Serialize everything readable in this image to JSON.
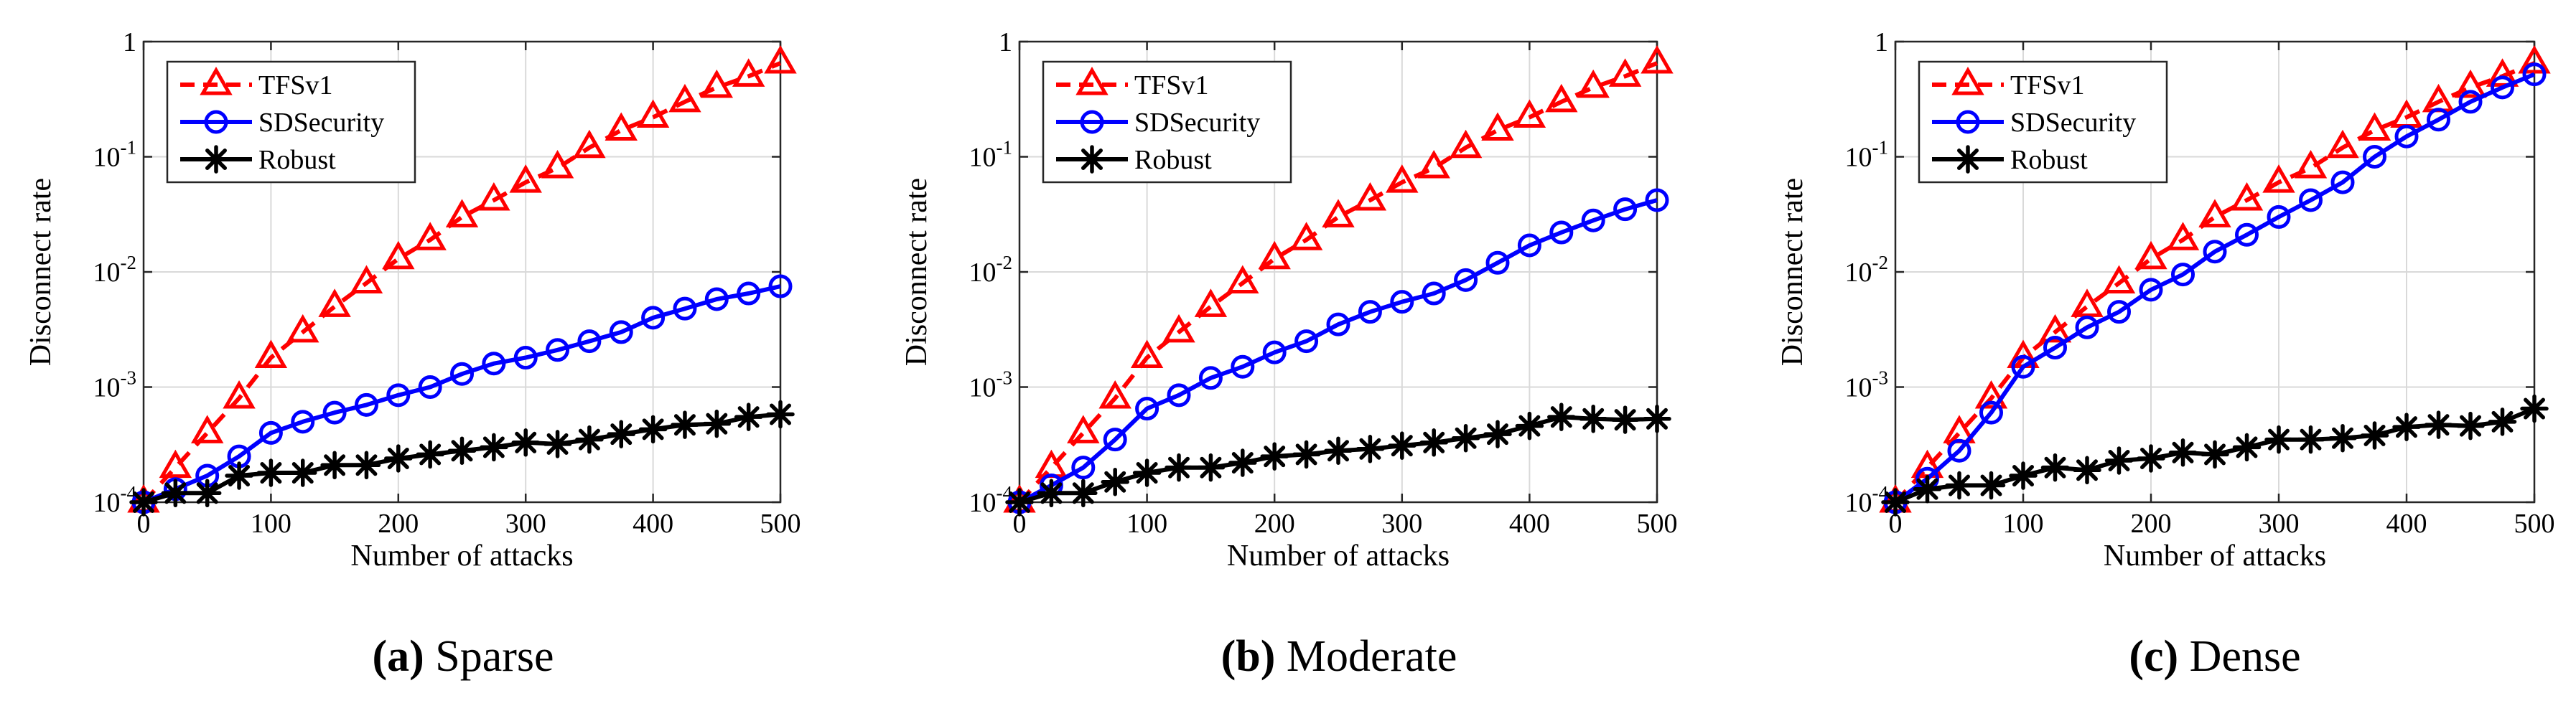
{
  "figure": {
    "panels": [
      {
        "letter": "(a)",
        "name": "Sparse"
      },
      {
        "letter": "(b)",
        "name": "Moderate"
      },
      {
        "letter": "(c)",
        "name": "Dense"
      }
    ]
  },
  "chart_data": [
    {
      "type": "line",
      "subtitle": "(a) Sparse",
      "xlabel": "Number of attacks",
      "ylabel": "Disconnect rate",
      "yscale": "log",
      "xlim": [
        0,
        500
      ],
      "ylim": [
        0.0001,
        1
      ],
      "xticks": [
        0,
        100,
        200,
        300,
        400,
        500
      ],
      "yticks": [
        {
          "value": 0.0001,
          "base": "10",
          "exp": "-4"
        },
        {
          "value": 0.001,
          "base": "10",
          "exp": "-3"
        },
        {
          "value": 0.01,
          "base": "10",
          "exp": "-2"
        },
        {
          "value": 0.1,
          "base": "10",
          "exp": "-1"
        },
        {
          "value": 1,
          "base": "1",
          "exp": ""
        }
      ],
      "grid": true,
      "legend_position": "top-left",
      "x": [
        0,
        25,
        50,
        75,
        100,
        125,
        150,
        175,
        200,
        225,
        250,
        275,
        300,
        325,
        350,
        375,
        400,
        425,
        450,
        475,
        500
      ],
      "series": [
        {
          "name": "TFSv1",
          "color": "#ff0000",
          "marker": "triangle",
          "line": "dashed",
          "values": [
            0.0001,
            0.0002,
            0.0004,
            0.0008,
            0.0018,
            0.003,
            0.005,
            0.008,
            0.013,
            0.019,
            0.03,
            0.042,
            0.06,
            0.08,
            0.12,
            0.17,
            0.22,
            0.3,
            0.4,
            0.5,
            0.65
          ]
        },
        {
          "name": "SDSecurity",
          "color": "#0000ff",
          "marker": "circle",
          "line": "solid",
          "values": [
            0.0001,
            0.00013,
            0.00017,
            0.00025,
            0.0004,
            0.0005,
            0.0006,
            0.0007,
            0.00085,
            0.001,
            0.0013,
            0.0016,
            0.0018,
            0.0021,
            0.0025,
            0.003,
            0.004,
            0.0048,
            0.0058,
            0.0065,
            0.0075
          ]
        },
        {
          "name": "Robust",
          "color": "#000000",
          "marker": "asterisk",
          "line": "solid",
          "values": [
            0.0001,
            0.00012,
            0.00012,
            0.00017,
            0.00018,
            0.00018,
            0.00021,
            0.00021,
            0.00024,
            0.00026,
            0.00028,
            0.0003,
            0.00033,
            0.00032,
            0.00035,
            0.00039,
            0.00043,
            0.00047,
            0.00048,
            0.00055,
            0.00058
          ]
        }
      ]
    },
    {
      "type": "line",
      "subtitle": "(b) Moderate",
      "xlabel": "Number of attacks",
      "ylabel": "Disconnect rate",
      "yscale": "log",
      "xlim": [
        0,
        500
      ],
      "ylim": [
        0.0001,
        1
      ],
      "xticks": [
        0,
        100,
        200,
        300,
        400,
        500
      ],
      "yticks": [
        {
          "value": 0.0001,
          "base": "10",
          "exp": "-4"
        },
        {
          "value": 0.001,
          "base": "10",
          "exp": "-3"
        },
        {
          "value": 0.01,
          "base": "10",
          "exp": "-2"
        },
        {
          "value": 0.1,
          "base": "10",
          "exp": "-1"
        },
        {
          "value": 1,
          "base": "1",
          "exp": ""
        }
      ],
      "grid": true,
      "legend_position": "top-left",
      "x": [
        0,
        25,
        50,
        75,
        100,
        125,
        150,
        175,
        200,
        225,
        250,
        275,
        300,
        325,
        350,
        375,
        400,
        425,
        450,
        475,
        500
      ],
      "series": [
        {
          "name": "TFSv1",
          "color": "#ff0000",
          "marker": "triangle",
          "line": "dashed",
          "values": [
            0.0001,
            0.0002,
            0.0004,
            0.0008,
            0.0018,
            0.003,
            0.005,
            0.008,
            0.013,
            0.019,
            0.03,
            0.042,
            0.06,
            0.08,
            0.12,
            0.17,
            0.22,
            0.3,
            0.4,
            0.5,
            0.65
          ]
        },
        {
          "name": "SDSecurity",
          "color": "#0000ff",
          "marker": "circle",
          "line": "solid",
          "values": [
            0.0001,
            0.00014,
            0.0002,
            0.00035,
            0.00065,
            0.00085,
            0.0012,
            0.0015,
            0.002,
            0.0025,
            0.0035,
            0.0045,
            0.0055,
            0.0065,
            0.0085,
            0.012,
            0.017,
            0.022,
            0.028,
            0.035,
            0.042
          ]
        },
        {
          "name": "Robust",
          "color": "#000000",
          "marker": "asterisk",
          "line": "solid",
          "values": [
            0.0001,
            0.00012,
            0.00012,
            0.00015,
            0.00018,
            0.0002,
            0.0002,
            0.00022,
            0.00025,
            0.00026,
            0.00028,
            0.00029,
            0.00031,
            0.00033,
            0.00036,
            0.00039,
            0.00046,
            0.00055,
            0.00053,
            0.00052,
            0.00053
          ]
        }
      ]
    },
    {
      "type": "line",
      "subtitle": "(c) Dense",
      "xlabel": "Number of attacks",
      "ylabel": "Disconnect rate",
      "yscale": "log",
      "xlim": [
        0,
        500
      ],
      "ylim": [
        0.0001,
        1
      ],
      "xticks": [
        0,
        100,
        200,
        300,
        400,
        500
      ],
      "yticks": [
        {
          "value": 0.0001,
          "base": "10",
          "exp": "-4"
        },
        {
          "value": 0.001,
          "base": "10",
          "exp": "-3"
        },
        {
          "value": 0.01,
          "base": "10",
          "exp": "-2"
        },
        {
          "value": 0.1,
          "base": "10",
          "exp": "-1"
        },
        {
          "value": 1,
          "base": "1",
          "exp": ""
        }
      ],
      "grid": true,
      "legend_position": "top-left",
      "x": [
        0,
        25,
        50,
        75,
        100,
        125,
        150,
        175,
        200,
        225,
        250,
        275,
        300,
        325,
        350,
        375,
        400,
        425,
        450,
        475,
        500
      ],
      "series": [
        {
          "name": "TFSv1",
          "color": "#ff0000",
          "marker": "triangle",
          "line": "dashed",
          "values": [
            0.0001,
            0.0002,
            0.0004,
            0.0008,
            0.0018,
            0.003,
            0.005,
            0.008,
            0.013,
            0.019,
            0.03,
            0.042,
            0.06,
            0.08,
            0.12,
            0.17,
            0.22,
            0.3,
            0.4,
            0.5,
            0.65
          ]
        },
        {
          "name": "SDSecurity",
          "color": "#0000ff",
          "marker": "circle",
          "line": "solid",
          "values": [
            0.0001,
            0.00016,
            0.00028,
            0.0006,
            0.0015,
            0.0022,
            0.0033,
            0.0045,
            0.007,
            0.0095,
            0.015,
            0.021,
            0.03,
            0.042,
            0.06,
            0.1,
            0.15,
            0.21,
            0.3,
            0.4,
            0.52
          ]
        },
        {
          "name": "Robust",
          "color": "#000000",
          "marker": "asterisk",
          "line": "solid",
          "values": [
            0.0001,
            0.00013,
            0.00014,
            0.00014,
            0.00017,
            0.0002,
            0.00019,
            0.00023,
            0.00024,
            0.00027,
            0.00026,
            0.0003,
            0.00035,
            0.00035,
            0.00036,
            0.00038,
            0.00045,
            0.00047,
            0.00046,
            0.0005,
            0.00065
          ]
        }
      ]
    }
  ]
}
